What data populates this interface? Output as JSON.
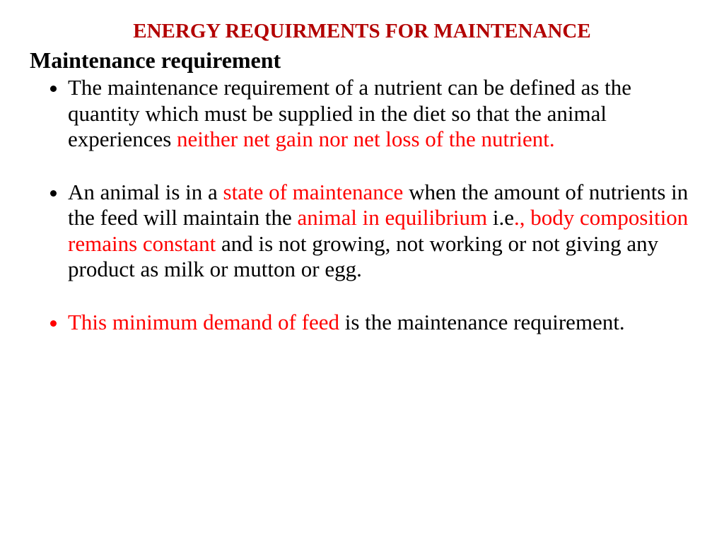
{
  "title": "ENERGY REQUIRMENTS FOR MAINTENANCE",
  "subheading": "Maintenance requirement",
  "b1": {
    "t1": "The maintenance requirement of a nutrient can be defined as the quantity which must be supplied in the diet so that the animal experiences ",
    "r1": "neither net gain nor net loss of the nutrient."
  },
  "b2": {
    "t1": "An animal is in a ",
    "r1": "state of maintenance ",
    "t2": "when the amount of nutrients in the feed will maintain the ",
    "r2": "animal in equilibrium ",
    "t3": "i.e",
    "r3": "., body composition remains constant ",
    "t4": "and is not growing, not working or not giving any product as milk or mutton or egg."
  },
  "b3": {
    "r1": "This minimum demand of feed ",
    "t1": "is the maintenance requirement."
  }
}
